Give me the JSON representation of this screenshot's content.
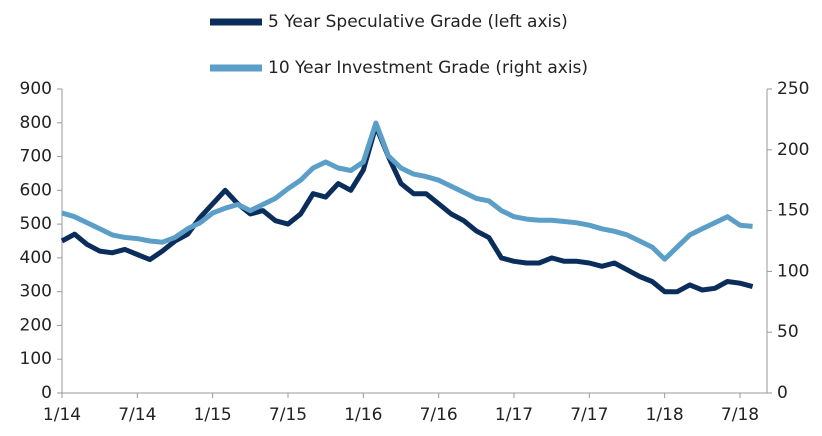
{
  "chart_data": {
    "type": "line",
    "categories": [
      "1/14",
      null,
      null,
      null,
      null,
      null,
      "7/14",
      null,
      null,
      null,
      null,
      null,
      "1/15",
      null,
      null,
      null,
      null,
      null,
      "7/15",
      null,
      null,
      null,
      null,
      null,
      "1/16",
      null,
      null,
      null,
      null,
      null,
      "7/16",
      null,
      null,
      null,
      null,
      null,
      "1/17",
      null,
      null,
      null,
      null,
      null,
      "7/17",
      null,
      null,
      null,
      null,
      null,
      "1/18",
      null,
      null,
      null,
      null,
      null,
      "7/18",
      null
    ],
    "series": [
      {
        "name": "5 Year Speculative Grade (left axis)",
        "color": "#0b2d5b",
        "axis": "y",
        "values": [
          450,
          470,
          440,
          420,
          415,
          425,
          410,
          395,
          420,
          450,
          470,
          520,
          560,
          600,
          560,
          530,
          540,
          510,
          500,
          530,
          590,
          580,
          620,
          600,
          660,
          790,
          700,
          620,
          590,
          590,
          560,
          530,
          510,
          480,
          460,
          400,
          390,
          385,
          385,
          400,
          390,
          390,
          385,
          375,
          385,
          365,
          345,
          330,
          300,
          300,
          320,
          305,
          310,
          330,
          325,
          315
        ]
      },
      {
        "name": "10 Year Investment Grade (right axis)",
        "color": "#5b9fc9",
        "axis": "y2",
        "values": [
          148,
          145,
          140,
          135,
          130,
          128,
          127,
          125,
          124,
          128,
          135,
          140,
          148,
          152,
          155,
          150,
          155,
          160,
          168,
          175,
          185,
          190,
          185,
          183,
          190,
          222,
          195,
          185,
          180,
          178,
          175,
          170,
          165,
          160,
          158,
          150,
          145,
          143,
          142,
          142,
          141,
          140,
          138,
          135,
          133,
          130,
          125,
          120,
          110,
          120,
          130,
          135,
          140,
          145,
          138,
          137
        ]
      }
    ],
    "ylim": [
      0,
      900
    ],
    "yticks": [
      0,
      100,
      200,
      300,
      400,
      500,
      600,
      700,
      800,
      900
    ],
    "y2lim": [
      0,
      250
    ],
    "y2ticks": [
      0,
      50,
      100,
      150,
      200,
      250
    ],
    "legend": "top"
  }
}
